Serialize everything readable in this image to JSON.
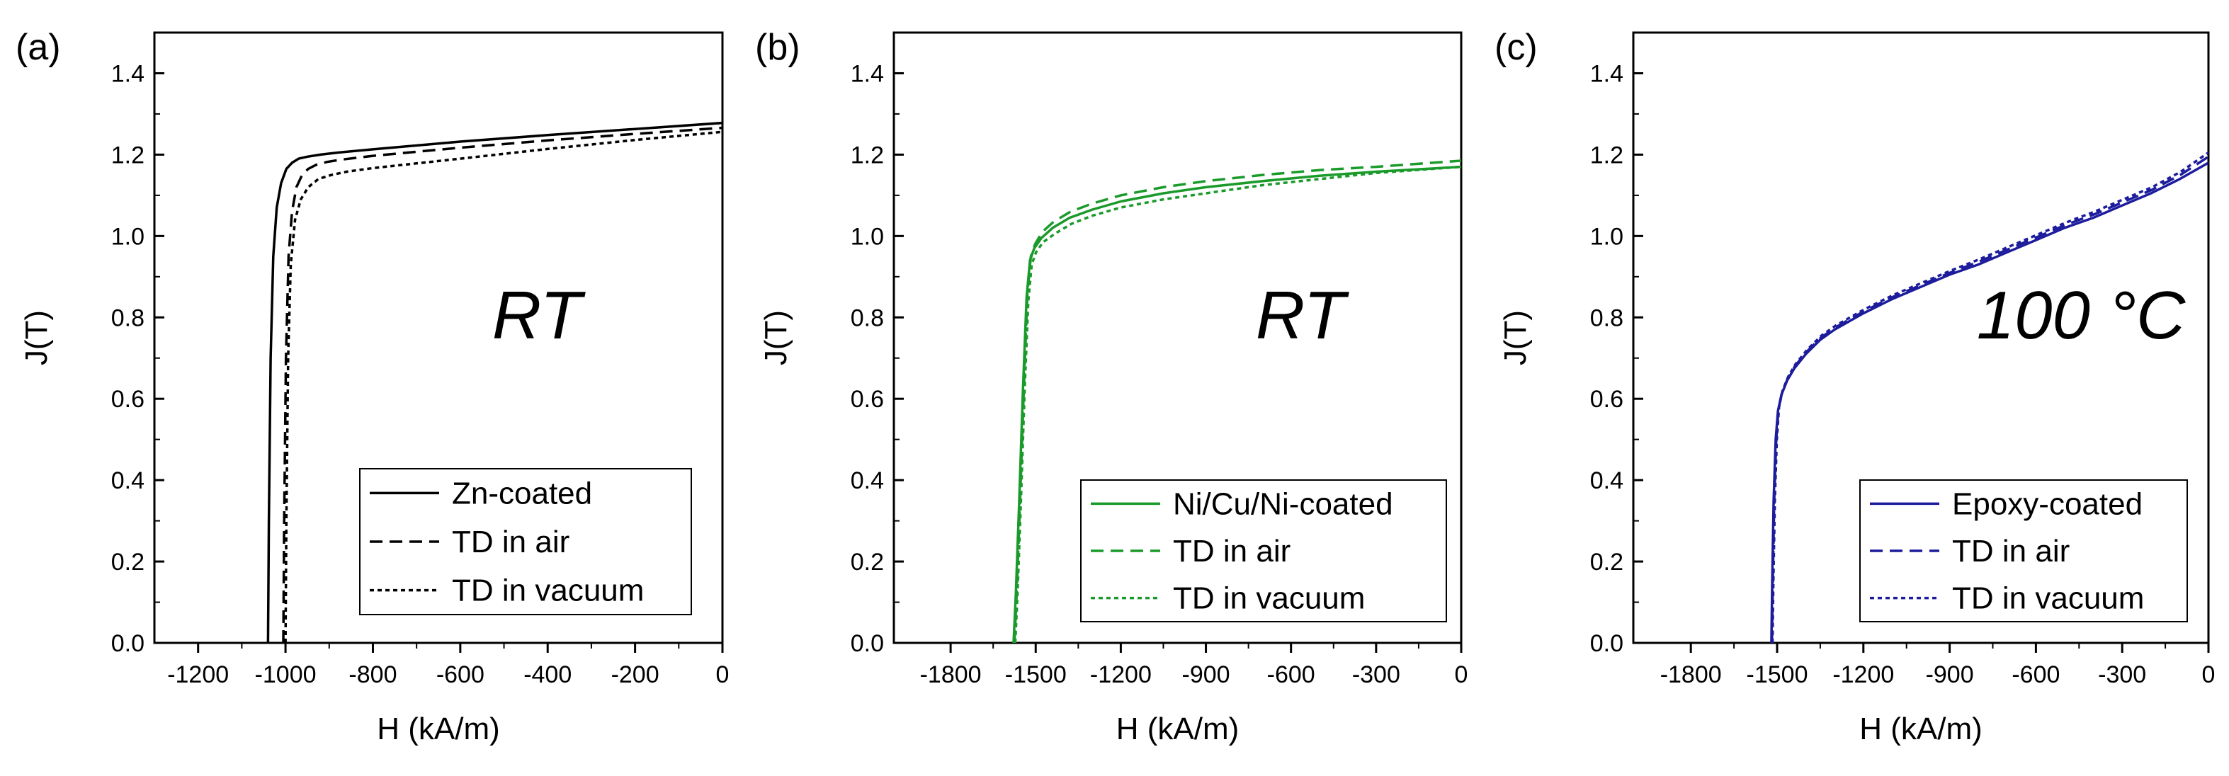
{
  "chart_data": [
    {
      "type": "line",
      "panel_label": "(a)",
      "annotation": "RT",
      "xlabel": "H (kA/m)",
      "ylabel": "J(T)",
      "xlim": [
        -1300,
        0
      ],
      "ylim": [
        0,
        1.5
      ],
      "xticks": [
        -1200,
        -1000,
        -800,
        -600,
        -400,
        -200,
        0
      ],
      "xtick_labels": [
        "-1200",
        "-1000",
        "-800",
        "-600",
        "-400",
        "-200",
        "0"
      ],
      "yticks": [
        0.0,
        0.2,
        0.4,
        0.6,
        0.8,
        1.0,
        1.2,
        1.4
      ],
      "ytick_labels": [
        "0.0",
        "0.2",
        "0.4",
        "0.6",
        "0.8",
        "1.0",
        "1.2",
        "1.4"
      ],
      "color": "#000000",
      "legend_position": "bottom-right",
      "series": [
        {
          "name": "Zn-coated",
          "style": "solid",
          "x": [
            -1040,
            -1038,
            -1034,
            -1028,
            -1020,
            -1010,
            -998,
            -985,
            -970,
            -950,
            -920,
            -880,
            -800,
            -600,
            -400,
            -200,
            0
          ],
          "y": [
            0.0,
            0.3,
            0.7,
            0.95,
            1.07,
            1.13,
            1.165,
            1.18,
            1.19,
            1.195,
            1.2,
            1.205,
            1.213,
            1.232,
            1.248,
            1.263,
            1.278
          ]
        },
        {
          "name": "TD in air",
          "style": "dashed",
          "x": [
            -1005,
            -1003,
            -999,
            -993,
            -985,
            -975,
            -962,
            -948,
            -930,
            -905,
            -870,
            -800,
            -600,
            -400,
            -200,
            0
          ],
          "y": [
            0.0,
            0.3,
            0.7,
            0.95,
            1.06,
            1.12,
            1.15,
            1.165,
            1.175,
            1.182,
            1.188,
            1.197,
            1.217,
            1.235,
            1.251,
            1.266
          ]
        },
        {
          "name": "TD in vacuum",
          "style": "dotted",
          "x": [
            -1000,
            -998,
            -994,
            -988,
            -978,
            -965,
            -948,
            -925,
            -895,
            -860,
            -800,
            -600,
            -400,
            -200,
            0
          ],
          "y": [
            0.0,
            0.3,
            0.7,
            0.93,
            1.04,
            1.09,
            1.12,
            1.14,
            1.15,
            1.158,
            1.167,
            1.19,
            1.214,
            1.236,
            1.256
          ]
        }
      ]
    },
    {
      "type": "line",
      "panel_label": "(b)",
      "annotation": "RT",
      "xlabel": "H (kA/m)",
      "ylabel": "J(T)",
      "xlim": [
        -2000,
        0
      ],
      "ylim": [
        0,
        1.5
      ],
      "xticks": [
        -1800,
        -1500,
        -1200,
        -900,
        -600,
        -300,
        0
      ],
      "xtick_labels": [
        "-1800",
        "-1500",
        "-1200",
        "-900",
        "-600",
        "-300",
        "0"
      ],
      "yticks": [
        0.0,
        0.2,
        0.4,
        0.6,
        0.8,
        1.0,
        1.2,
        1.4
      ],
      "ytick_labels": [
        "0.0",
        "0.2",
        "0.4",
        "0.6",
        "0.8",
        "1.0",
        "1.2",
        "1.4"
      ],
      "color": "#1a9a2a",
      "legend_position": "bottom-right",
      "series": [
        {
          "name": "Ni/Cu/Ni-coated",
          "style": "solid",
          "x": [
            -1578,
            -1570,
            -1558,
            -1545,
            -1532,
            -1520,
            -1505,
            -1480,
            -1440,
            -1380,
            -1300,
            -1200,
            -1050,
            -900,
            -700,
            -500,
            -300,
            0
          ],
          "y": [
            0.0,
            0.12,
            0.35,
            0.62,
            0.85,
            0.94,
            0.97,
            0.995,
            1.02,
            1.045,
            1.065,
            1.085,
            1.105,
            1.12,
            1.135,
            1.148,
            1.158,
            1.17
          ]
        },
        {
          "name": "TD in air",
          "style": "dashed",
          "x": [
            -1575,
            -1567,
            -1555,
            -1542,
            -1529,
            -1517,
            -1502,
            -1477,
            -1437,
            -1377,
            -1300,
            -1200,
            -1050,
            -900,
            -700,
            -500,
            -300,
            0
          ],
          "y": [
            0.0,
            0.12,
            0.35,
            0.62,
            0.86,
            0.95,
            0.98,
            1.01,
            1.035,
            1.06,
            1.08,
            1.1,
            1.12,
            1.135,
            1.15,
            1.162,
            1.17,
            1.185
          ]
        },
        {
          "name": "TD in vacuum",
          "style": "dotted",
          "x": [
            -1572,
            -1564,
            -1552,
            -1539,
            -1526,
            -1514,
            -1499,
            -1474,
            -1434,
            -1374,
            -1300,
            -1200,
            -1050,
            -900,
            -700,
            -500,
            -300,
            0
          ],
          "y": [
            0.0,
            0.12,
            0.35,
            0.62,
            0.84,
            0.93,
            0.96,
            0.985,
            1.005,
            1.03,
            1.05,
            1.07,
            1.09,
            1.105,
            1.125,
            1.14,
            1.155,
            1.17
          ]
        }
      ]
    },
    {
      "type": "line",
      "panel_label": "(c)",
      "annotation": "100 °C",
      "xlabel": "H (kA/m)",
      "ylabel": "J(T)",
      "xlim": [
        -2000,
        0
      ],
      "ylim": [
        0,
        1.5
      ],
      "xticks": [
        -1800,
        -1500,
        -1200,
        -900,
        -600,
        -300,
        0
      ],
      "xtick_labels": [
        "-1800",
        "-1500",
        "-1200",
        "-900",
        "-600",
        "-300",
        "0"
      ],
      "yticks": [
        0.0,
        0.2,
        0.4,
        0.6,
        0.8,
        1.0,
        1.2,
        1.4
      ],
      "ytick_labels": [
        "0.0",
        "0.2",
        "0.4",
        "0.6",
        "0.8",
        "1.0",
        "1.2",
        "1.4"
      ],
      "color": "#1c1c9c",
      "legend_position": "bottom-right",
      "series": [
        {
          "name": "Epoxy-coated",
          "style": "solid",
          "x": [
            -1520,
            -1517,
            -1512,
            -1505,
            -1497,
            -1485,
            -1465,
            -1440,
            -1400,
            -1350,
            -1300,
            -1200,
            -1100,
            -1000,
            -900,
            -800,
            -700,
            -600,
            -500,
            -400,
            -300,
            -200,
            -100,
            0
          ],
          "y": [
            0.0,
            0.15,
            0.35,
            0.5,
            0.57,
            0.61,
            0.645,
            0.675,
            0.71,
            0.745,
            0.77,
            0.81,
            0.845,
            0.875,
            0.905,
            0.93,
            0.96,
            0.99,
            1.02,
            1.045,
            1.075,
            1.105,
            1.14,
            1.18
          ]
        },
        {
          "name": "TD in air",
          "style": "dashed",
          "x": [
            -1518,
            -1515,
            -1510,
            -1503,
            -1495,
            -1483,
            -1463,
            -1438,
            -1398,
            -1348,
            -1298,
            -1198,
            -1098,
            -998,
            -898,
            -798,
            -698,
            -598,
            -498,
            -398,
            -298,
            -198,
            -98,
            0
          ],
          "y": [
            0.0,
            0.15,
            0.35,
            0.5,
            0.575,
            0.615,
            0.65,
            0.68,
            0.715,
            0.75,
            0.775,
            0.815,
            0.85,
            0.88,
            0.91,
            0.937,
            0.967,
            0.997,
            1.027,
            1.053,
            1.083,
            1.113,
            1.15,
            1.195
          ]
        },
        {
          "name": "TD in vacuum",
          "style": "dotted",
          "x": [
            -1516,
            -1513,
            -1508,
            -1501,
            -1493,
            -1481,
            -1461,
            -1436,
            -1396,
            -1346,
            -1296,
            -1196,
            -1096,
            -996,
            -896,
            -796,
            -696,
            -596,
            -496,
            -396,
            -296,
            -196,
            -96,
            0
          ],
          "y": [
            0.0,
            0.15,
            0.35,
            0.5,
            0.58,
            0.62,
            0.655,
            0.685,
            0.72,
            0.755,
            0.78,
            0.82,
            0.855,
            0.885,
            0.915,
            0.943,
            0.973,
            1.003,
            1.033,
            1.06,
            1.09,
            1.12,
            1.158,
            1.205
          ]
        }
      ]
    }
  ]
}
